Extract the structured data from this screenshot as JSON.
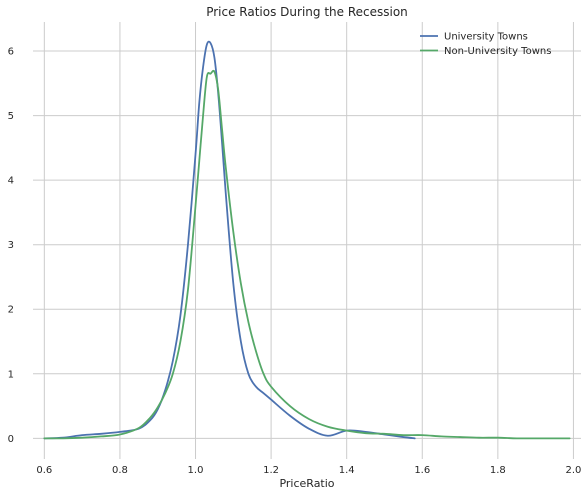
{
  "chart_data": {
    "type": "line",
    "title": "Price Ratios During the Recession",
    "xlabel": "PriceRatio",
    "ylabel": "",
    "xlim": [
      0.57,
      2.02
    ],
    "ylim": [
      -0.32,
      6.45
    ],
    "xticks": [
      0.6,
      0.8,
      1.0,
      1.2,
      1.4,
      1.6,
      1.8,
      2.0
    ],
    "xtick_labels": [
      "0.6",
      "0.8",
      "1.0",
      "1.2",
      "1.4",
      "1.6",
      "1.8",
      "2.0"
    ],
    "yticks": [
      0,
      1,
      2,
      3,
      4,
      5,
      6
    ],
    "ytick_labels": [
      "0",
      "1",
      "2",
      "3",
      "4",
      "5",
      "6"
    ],
    "grid": true,
    "legend_position": "top-right",
    "series": [
      {
        "name": "University Towns",
        "color": "#4c72b0",
        "x": [
          0.6,
          0.65,
          0.7,
          0.75,
          0.8,
          0.85,
          0.88,
          0.9,
          0.92,
          0.94,
          0.96,
          0.98,
          1.0,
          1.01,
          1.02,
          1.03,
          1.04,
          1.05,
          1.06,
          1.07,
          1.08,
          1.1,
          1.12,
          1.14,
          1.16,
          1.18,
          1.2,
          1.25,
          1.3,
          1.35,
          1.4,
          1.45,
          1.5,
          1.55,
          1.58
        ],
        "y": [
          0.0,
          0.01,
          0.05,
          0.07,
          0.1,
          0.15,
          0.28,
          0.45,
          0.75,
          1.2,
          1.9,
          3.0,
          4.4,
          5.2,
          5.75,
          6.1,
          6.12,
          5.9,
          5.35,
          4.6,
          3.8,
          2.4,
          1.5,
          1.0,
          0.8,
          0.7,
          0.6,
          0.35,
          0.15,
          0.04,
          0.12,
          0.1,
          0.06,
          0.02,
          0.0
        ]
      },
      {
        "name": "Non-University Towns",
        "color": "#55a868",
        "x": [
          0.6,
          0.65,
          0.7,
          0.75,
          0.8,
          0.85,
          0.88,
          0.9,
          0.92,
          0.94,
          0.96,
          0.98,
          1.0,
          1.01,
          1.02,
          1.03,
          1.04,
          1.05,
          1.06,
          1.07,
          1.08,
          1.1,
          1.12,
          1.14,
          1.16,
          1.18,
          1.2,
          1.25,
          1.3,
          1.35,
          1.4,
          1.45,
          1.5,
          1.55,
          1.6,
          1.65,
          1.7,
          1.75,
          1.8,
          1.85,
          1.9,
          1.95,
          1.99
        ],
        "y": [
          0.0,
          0.0,
          0.01,
          0.03,
          0.06,
          0.16,
          0.32,
          0.48,
          0.7,
          1.0,
          1.5,
          2.3,
          3.6,
          4.3,
          5.0,
          5.6,
          5.65,
          5.68,
          5.4,
          4.8,
          4.2,
          3.2,
          2.4,
          1.8,
          1.35,
          1.0,
          0.8,
          0.5,
          0.3,
          0.18,
          0.12,
          0.08,
          0.07,
          0.05,
          0.05,
          0.03,
          0.02,
          0.01,
          0.01,
          0.0,
          0.0,
          0.0,
          0.0
        ]
      }
    ]
  }
}
